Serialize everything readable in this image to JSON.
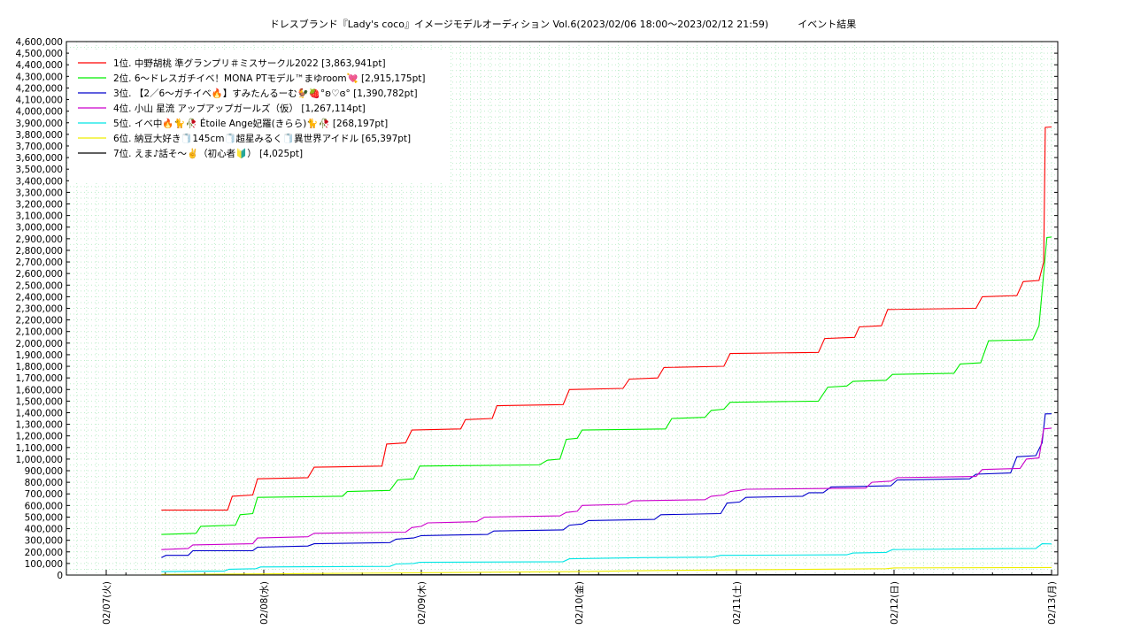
{
  "chart_data": {
    "type": "line",
    "title": "ドレスブランド『Lady's coco』イメージモデルオーディション Vol.6(2023/02/06 18:00～2023/02/12 21:59)　　　イベント結果",
    "xlabel": "",
    "ylabel": "",
    "x_ticks": [
      "02/07(火)",
      "02/08(水)",
      "02/09(木)",
      "02/10(金)",
      "02/11(土)",
      "02/12(日)",
      "02/13(月)"
    ],
    "x_range": [
      0,
      6.0
    ],
    "ylim": [
      0,
      4600000
    ],
    "y_ticks": [
      "0",
      "100,000",
      "200,000",
      "300,000",
      "400,000",
      "500,000",
      "600,000",
      "700,000",
      "800,000",
      "900,000",
      "1,000,000",
      "1,100,000",
      "1,200,000",
      "1,300,000",
      "1,400,000",
      "1,500,000",
      "1,600,000",
      "1,700,000",
      "1,800,000",
      "1,900,000",
      "2,000,000",
      "2,100,000",
      "2,200,000",
      "2,300,000",
      "2,400,000",
      "2,500,000",
      "2,600,000",
      "2,700,000",
      "2,800,000",
      "2,900,000",
      "3,000,000",
      "3,100,000",
      "3,200,000",
      "3,300,000",
      "3,400,000",
      "3,500,000",
      "3,600,000",
      "3,700,000",
      "3,800,000",
      "3,900,000",
      "4,000,000",
      "4,100,000",
      "4,200,000",
      "4,300,000",
      "4,400,000",
      "4,500,000",
      "4,600,000"
    ],
    "grid": true,
    "legend_position": "top-left",
    "series": [
      {
        "name": "1位. 中野胡桃 準グランプリ＃ミスサークル2022 [3,863,941pt]",
        "color": "#ff0000",
        "points": [
          [
            0.35,
            560000
          ],
          [
            0.77,
            560000
          ],
          [
            0.8,
            680000
          ],
          [
            0.93,
            690000
          ],
          [
            0.96,
            830000
          ],
          [
            1.28,
            840000
          ],
          [
            1.32,
            930000
          ],
          [
            1.75,
            940000
          ],
          [
            1.78,
            1130000
          ],
          [
            1.9,
            1140000
          ],
          [
            1.94,
            1250000
          ],
          [
            2.25,
            1260000
          ],
          [
            2.28,
            1340000
          ],
          [
            2.45,
            1350000
          ],
          [
            2.48,
            1460000
          ],
          [
            2.9,
            1470000
          ],
          [
            2.94,
            1600000
          ],
          [
            3.28,
            1610000
          ],
          [
            3.32,
            1690000
          ],
          [
            3.5,
            1700000
          ],
          [
            3.54,
            1790000
          ],
          [
            3.92,
            1800000
          ],
          [
            3.96,
            1910000
          ],
          [
            4.52,
            1920000
          ],
          [
            4.56,
            2040000
          ],
          [
            4.75,
            2050000
          ],
          [
            4.78,
            2140000
          ],
          [
            4.92,
            2150000
          ],
          [
            4.96,
            2290000
          ],
          [
            5.52,
            2300000
          ],
          [
            5.56,
            2400000
          ],
          [
            5.78,
            2410000
          ],
          [
            5.82,
            2530000
          ],
          [
            5.92,
            2540000
          ],
          [
            5.95,
            2700000
          ],
          [
            5.96,
            3860000
          ],
          [
            6.0,
            3863941
          ]
        ]
      },
      {
        "name": "2位. 6〜ドレスガチイベ！MONA PTモデル™まゆroom💘 [2,915,175pt]",
        "color": "#00ee00",
        "points": [
          [
            0.35,
            350000
          ],
          [
            0.57,
            360000
          ],
          [
            0.6,
            420000
          ],
          [
            0.82,
            430000
          ],
          [
            0.85,
            520000
          ],
          [
            0.93,
            530000
          ],
          [
            0.96,
            670000
          ],
          [
            1.5,
            680000
          ],
          [
            1.53,
            720000
          ],
          [
            1.8,
            730000
          ],
          [
            1.85,
            820000
          ],
          [
            1.95,
            830000
          ],
          [
            1.99,
            940000
          ],
          [
            2.75,
            950000
          ],
          [
            2.8,
            990000
          ],
          [
            2.88,
            1000000
          ],
          [
            2.92,
            1170000
          ],
          [
            2.99,
            1180000
          ],
          [
            3.02,
            1250000
          ],
          [
            3.55,
            1260000
          ],
          [
            3.59,
            1350000
          ],
          [
            3.8,
            1360000
          ],
          [
            3.84,
            1420000
          ],
          [
            3.92,
            1430000
          ],
          [
            3.96,
            1490000
          ],
          [
            4.52,
            1500000
          ],
          [
            4.58,
            1620000
          ],
          [
            4.7,
            1630000
          ],
          [
            4.74,
            1670000
          ],
          [
            4.95,
            1680000
          ],
          [
            4.99,
            1730000
          ],
          [
            5.38,
            1740000
          ],
          [
            5.42,
            1820000
          ],
          [
            5.55,
            1830000
          ],
          [
            5.6,
            2020000
          ],
          [
            5.88,
            2030000
          ],
          [
            5.92,
            2150000
          ],
          [
            5.95,
            2600000
          ],
          [
            5.97,
            2910000
          ],
          [
            6.0,
            2915175
          ]
        ]
      },
      {
        "name": "3位. 【2／6〜ガチイベ🔥】すみたんるーむ🐓🍓°ʚ♡ɞ° [1,390,782pt]",
        "color": "#0000cc",
        "points": [
          [
            0.35,
            150000
          ],
          [
            0.38,
            170000
          ],
          [
            0.52,
            170000
          ],
          [
            0.55,
            210000
          ],
          [
            0.93,
            210000
          ],
          [
            0.96,
            240000
          ],
          [
            1.28,
            250000
          ],
          [
            1.32,
            270000
          ],
          [
            1.8,
            280000
          ],
          [
            1.84,
            310000
          ],
          [
            1.95,
            320000
          ],
          [
            2.0,
            340000
          ],
          [
            2.42,
            350000
          ],
          [
            2.46,
            380000
          ],
          [
            2.9,
            390000
          ],
          [
            2.94,
            430000
          ],
          [
            3.02,
            440000
          ],
          [
            3.06,
            470000
          ],
          [
            3.48,
            480000
          ],
          [
            3.52,
            520000
          ],
          [
            3.9,
            530000
          ],
          [
            3.94,
            620000
          ],
          [
            4.02,
            630000
          ],
          [
            4.06,
            670000
          ],
          [
            4.42,
            680000
          ],
          [
            4.46,
            710000
          ],
          [
            4.55,
            710000
          ],
          [
            4.6,
            760000
          ],
          [
            4.98,
            770000
          ],
          [
            5.02,
            820000
          ],
          [
            5.48,
            830000
          ],
          [
            5.52,
            870000
          ],
          [
            5.74,
            880000
          ],
          [
            5.78,
            1020000
          ],
          [
            5.9,
            1030000
          ],
          [
            5.94,
            1140000
          ],
          [
            5.96,
            1390000
          ],
          [
            6.0,
            1390782
          ]
        ]
      },
      {
        "name": "4位. 小山 星流 アップアップガールズ（仮） [1,267,114pt]",
        "color": "#cc00cc",
        "points": [
          [
            0.35,
            220000
          ],
          [
            0.52,
            230000
          ],
          [
            0.55,
            260000
          ],
          [
            0.93,
            270000
          ],
          [
            0.96,
            320000
          ],
          [
            1.28,
            330000
          ],
          [
            1.32,
            360000
          ],
          [
            1.9,
            370000
          ],
          [
            1.94,
            410000
          ],
          [
            2.0,
            420000
          ],
          [
            2.04,
            450000
          ],
          [
            2.35,
            460000
          ],
          [
            2.4,
            500000
          ],
          [
            2.88,
            510000
          ],
          [
            2.92,
            540000
          ],
          [
            2.99,
            550000
          ],
          [
            3.02,
            600000
          ],
          [
            3.3,
            610000
          ],
          [
            3.34,
            640000
          ],
          [
            3.8,
            650000
          ],
          [
            3.84,
            680000
          ],
          [
            3.92,
            690000
          ],
          [
            3.96,
            720000
          ],
          [
            4.02,
            730000
          ],
          [
            4.06,
            740000
          ],
          [
            4.82,
            750000
          ],
          [
            4.86,
            800000
          ],
          [
            4.98,
            810000
          ],
          [
            5.02,
            840000
          ],
          [
            5.52,
            850000
          ],
          [
            5.56,
            910000
          ],
          [
            5.8,
            920000
          ],
          [
            5.84,
            1000000
          ],
          [
            5.92,
            1010000
          ],
          [
            5.95,
            1260000
          ],
          [
            6.0,
            1267114
          ]
        ]
      },
      {
        "name": "5位. イベ中🔥🐈🥀 Étoile Ange妃羅(きらら)🐈🥀 [268,197pt]",
        "color": "#00e5e5",
        "points": [
          [
            0.35,
            30000
          ],
          [
            0.75,
            35000
          ],
          [
            0.78,
            50000
          ],
          [
            0.95,
            55000
          ],
          [
            0.98,
            70000
          ],
          [
            1.8,
            75000
          ],
          [
            1.84,
            95000
          ],
          [
            1.95,
            100000
          ],
          [
            1.99,
            110000
          ],
          [
            2.9,
            115000
          ],
          [
            2.94,
            140000
          ],
          [
            3.4,
            150000
          ],
          [
            3.85,
            155000
          ],
          [
            3.9,
            170000
          ],
          [
            4.7,
            175000
          ],
          [
            4.74,
            190000
          ],
          [
            4.95,
            195000
          ],
          [
            4.99,
            220000
          ],
          [
            5.9,
            230000
          ],
          [
            5.94,
            270000
          ],
          [
            6.0,
            268197
          ]
        ]
      },
      {
        "name": "6位. 納豆大好き🧻145cm🧻超星みるく🧻異世界アイドル [65,397pt]",
        "color": "#eeee00",
        "points": [
          [
            0.35,
            5000
          ],
          [
            1.0,
            10000
          ],
          [
            1.5,
            15000
          ],
          [
            2.0,
            20000
          ],
          [
            2.5,
            25000
          ],
          [
            3.0,
            30000
          ],
          [
            3.5,
            40000
          ],
          [
            4.0,
            45000
          ],
          [
            4.5,
            50000
          ],
          [
            4.95,
            55000
          ],
          [
            5.0,
            62000
          ],
          [
            6.0,
            65397
          ]
        ]
      },
      {
        "name": "7位. えま♪話そ〜✌️（初心者🔰） [4,025pt]",
        "color": "#000000",
        "points": [
          [
            0.35,
            0
          ],
          [
            1.0,
            1000
          ],
          [
            2.0,
            2000
          ],
          [
            3.0,
            2500
          ],
          [
            4.0,
            3000
          ],
          [
            5.0,
            3500
          ],
          [
            6.0,
            4025
          ]
        ]
      }
    ]
  }
}
